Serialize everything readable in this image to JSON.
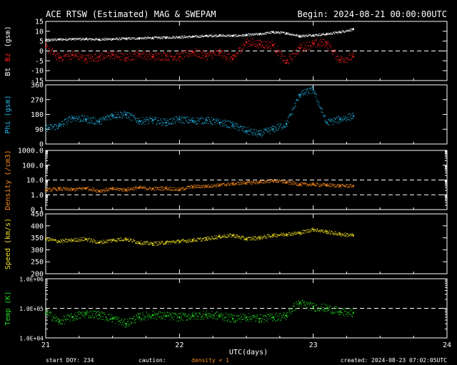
{
  "title": "ACE RTSW (Estimated) MAG & SWEPAM",
  "begin": "Begin: 2024-08-21 00:00:00UTC",
  "xlabel": "UTC(days)",
  "footer": {
    "start_doy": "start DOY: 234",
    "caution": "caution:",
    "density_note": "density < 1",
    "created": "created: 2024-08-23 07:02:05UTC"
  },
  "colors": {
    "background": "#000000",
    "axes": "#ffffff",
    "bt": "#ffffff",
    "bz": "#ff2020",
    "phi": "#22b8e8",
    "density": "#ff8c1a",
    "speed": "#f0e020",
    "temp": "#22dd22"
  },
  "chart_data": [
    {
      "type": "scatter",
      "panel": "mag",
      "ylabel": [
        "Bt",
        "Bz",
        "(gsm)"
      ],
      "ylim": [
        -15,
        15
      ],
      "yticks": [
        "15",
        "10",
        "5",
        "0",
        "-5",
        "-10",
        "-15"
      ],
      "xlim": [
        21,
        24
      ],
      "xticks": [
        "21",
        "22",
        "23",
        "24"
      ],
      "dashed_ref": [
        0
      ],
      "series": [
        {
          "name": "Bt",
          "color": "#ffffff",
          "x": [
            21.0,
            21.1,
            21.2,
            21.3,
            21.4,
            21.5,
            21.6,
            21.7,
            21.8,
            21.9,
            22.0,
            22.1,
            22.2,
            22.3,
            22.4,
            22.5,
            22.6,
            22.7,
            22.8,
            22.9,
            23.0,
            23.1,
            23.2,
            23.3
          ],
          "y": [
            5.5,
            5.8,
            6.0,
            6.0,
            5.8,
            6.0,
            6.2,
            6.4,
            6.6,
            6.8,
            7.0,
            7.2,
            7.6,
            7.8,
            7.6,
            8.0,
            8.5,
            9.5,
            9.0,
            7.5,
            8.0,
            8.5,
            9.5,
            11.0
          ]
        },
        {
          "name": "Bz",
          "color": "#ff2020",
          "x": [
            21.0,
            21.1,
            21.2,
            21.3,
            21.4,
            21.5,
            21.6,
            21.7,
            21.8,
            21.9,
            22.0,
            22.1,
            22.2,
            22.3,
            22.4,
            22.5,
            22.6,
            22.7,
            22.8,
            22.9,
            23.0,
            23.1,
            23.2,
            23.3
          ],
          "y": [
            2.0,
            -3.5,
            -2.0,
            -4.0,
            -3.0,
            -2.0,
            -3.5,
            -1.5,
            -3.0,
            -2.5,
            -3.0,
            -0.5,
            -2.5,
            -1.0,
            -4.0,
            4.5,
            3.5,
            3.0,
            -6.0,
            1.5,
            3.5,
            4.0,
            -4.5,
            -3.0
          ]
        }
      ]
    },
    {
      "type": "scatter",
      "panel": "phi",
      "ylabel": [
        "Phi (gsm)"
      ],
      "ylim": [
        0,
        360
      ],
      "yticks": [
        "360",
        "270",
        "180",
        "90",
        "0"
      ],
      "xlim": [
        21,
        24
      ],
      "dashed_ref": [],
      "series": [
        {
          "name": "Phi",
          "color": "#22b8e8",
          "x": [
            21.0,
            21.1,
            21.2,
            21.3,
            21.4,
            21.5,
            21.6,
            21.7,
            21.8,
            21.9,
            22.0,
            22.1,
            22.2,
            22.3,
            22.4,
            22.5,
            22.6,
            22.7,
            22.8,
            22.9,
            23.0,
            23.1,
            23.2,
            23.3
          ],
          "y": [
            95,
            110,
            160,
            150,
            135,
            175,
            180,
            140,
            145,
            130,
            150,
            140,
            145,
            130,
            115,
            80,
            60,
            90,
            120,
            300,
            330,
            130,
            150,
            170
          ]
        }
      ]
    },
    {
      "type": "scatter",
      "panel": "density",
      "ylabel": [
        "Density (/cm3)"
      ],
      "yscale": "log",
      "ylim": [
        0.1,
        1000
      ],
      "yticks": [
        "1000.0",
        "100.0",
        "10.0",
        "1.0",
        "0.1"
      ],
      "xlim": [
        21,
        24
      ],
      "dashed_ref": [
        1,
        10
      ],
      "series": [
        {
          "name": "Density",
          "color": "#ff8c1a",
          "x": [
            21.0,
            21.1,
            21.2,
            21.3,
            21.4,
            21.5,
            21.6,
            21.7,
            21.8,
            21.9,
            22.0,
            22.1,
            22.2,
            22.3,
            22.4,
            22.5,
            22.6,
            22.7,
            22.8,
            22.9,
            23.0,
            23.1,
            23.2,
            23.3
          ],
          "y": [
            2.0,
            2.5,
            2.2,
            2.8,
            1.8,
            2.5,
            2.2,
            3.0,
            2.5,
            2.8,
            2.2,
            3.5,
            3.8,
            4.5,
            5.5,
            6.5,
            7.0,
            9.0,
            7.0,
            5.0,
            5.0,
            4.5,
            4.0,
            4.0
          ]
        }
      ]
    },
    {
      "type": "scatter",
      "panel": "speed",
      "ylabel": [
        "Speed (km/s)"
      ],
      "ylim": [
        200,
        450
      ],
      "yticks": [
        "450",
        "400",
        "350",
        "300",
        "250",
        "200"
      ],
      "xlim": [
        21,
        24
      ],
      "dashed_ref": [],
      "series": [
        {
          "name": "Speed",
          "color": "#f0e020",
          "x": [
            21.0,
            21.1,
            21.2,
            21.3,
            21.4,
            21.5,
            21.6,
            21.7,
            21.8,
            21.9,
            22.0,
            22.1,
            22.2,
            22.3,
            22.4,
            22.5,
            22.6,
            22.7,
            22.8,
            22.9,
            23.0,
            23.1,
            23.2,
            23.3
          ],
          "y": [
            345,
            335,
            340,
            345,
            330,
            340,
            345,
            330,
            325,
            330,
            335,
            340,
            345,
            355,
            360,
            345,
            350,
            360,
            365,
            370,
            385,
            375,
            365,
            360
          ]
        }
      ]
    },
    {
      "type": "scatter",
      "panel": "temp",
      "ylabel": [
        "Temp (K)"
      ],
      "yscale": "log",
      "ylim": [
        10000,
        1000000
      ],
      "yticks": [
        "1.0E+06",
        "1.0E+05",
        "1.0E+04"
      ],
      "xlim": [
        21,
        24
      ],
      "dashed_ref": [
        100000
      ],
      "series": [
        {
          "name": "Temp",
          "color": "#22dd22",
          "x": [
            21.0,
            21.1,
            21.2,
            21.3,
            21.4,
            21.5,
            21.6,
            21.7,
            21.8,
            21.9,
            22.0,
            22.1,
            22.2,
            22.3,
            22.4,
            22.5,
            22.6,
            22.7,
            22.8,
            22.9,
            23.0,
            23.1,
            23.2,
            23.3
          ],
          "y": [
            70000,
            35000,
            50000,
            65000,
            60000,
            45000,
            30000,
            50000,
            60000,
            55000,
            50000,
            55000,
            60000,
            55000,
            45000,
            50000,
            45000,
            50000,
            55000,
            150000,
            110000,
            100000,
            75000,
            70000
          ]
        }
      ]
    }
  ]
}
